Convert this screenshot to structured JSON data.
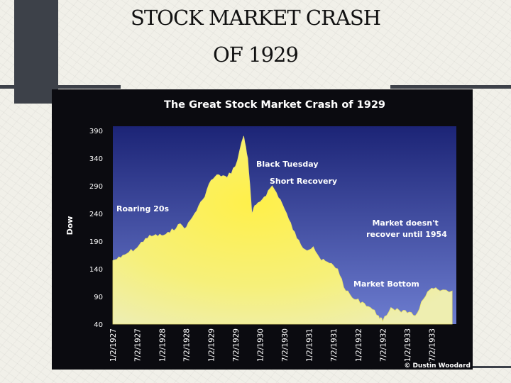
{
  "slide": {
    "title_line1": "STOCK MARKET CRASH",
    "title_line2": "OF 1929"
  },
  "colors": {
    "plot_top": "#1c2476",
    "plot_bottom": "#6d7dd0",
    "area_fill_top": "#ffee55",
    "area_fill_bottom": "#f2ef95",
    "frame": "#0b0b10"
  },
  "chart_data": {
    "type": "area",
    "title": "The Great Stock Market Crash of 1929",
    "ylabel": "Dow",
    "xlabel": "",
    "ylim": [
      40,
      390
    ],
    "y_ticks": [
      390,
      340,
      290,
      240,
      190,
      140,
      90,
      40
    ],
    "x_tick_labels": [
      "1/2/1927",
      "7/2/1927",
      "1/2/1928",
      "7/2/1928",
      "1/2/1929",
      "7/2/1929",
      "1/2/1930",
      "7/2/1930",
      "1/2/1931",
      "7/2/1931",
      "1/2/1932",
      "7/2/1932",
      "1/2/1933",
      "7/2/1933"
    ],
    "grid": false,
    "credit": "© Dustin Woodard",
    "annotations": [
      "Roaring 20s",
      "Black Tuesday",
      "Short Recovery",
      "Market doesn't recover until 1954",
      "Market Bottom"
    ],
    "series": [
      {
        "x": [
          "1927-01",
          "1927-03",
          "1927-05",
          "1927-07",
          "1927-09",
          "1927-11",
          "1928-01",
          "1928-03",
          "1928-05",
          "1928-07",
          "1928-09",
          "1928-11",
          "1929-01",
          "1929-03",
          "1929-05",
          "1929-07",
          "1929-09",
          "1929-10",
          "1929-11",
          "1929-12",
          "1930-02",
          "1930-04",
          "1930-06",
          "1930-08",
          "1930-10",
          "1930-12",
          "1931-02",
          "1931-04",
          "1931-06",
          "1931-08",
          "1931-10",
          "1931-12",
          "1932-02",
          "1932-04",
          "1932-06",
          "1932-07",
          "1932-09",
          "1932-11",
          "1933-01",
          "1933-03",
          "1933-05",
          "1933-07",
          "1933-09",
          "1933-12"
        ],
        "values": [
          155,
          160,
          170,
          178,
          195,
          200,
          200,
          205,
          220,
          215,
          240,
          265,
          300,
          310,
          305,
          325,
          380,
          340,
          240,
          255,
          270,
          290,
          265,
          230,
          195,
          175,
          180,
          155,
          150,
          140,
          100,
          85,
          80,
          70,
          55,
          45,
          70,
          65,
          60,
          55,
          85,
          105,
          100,
          100
        ]
      }
    ]
  }
}
